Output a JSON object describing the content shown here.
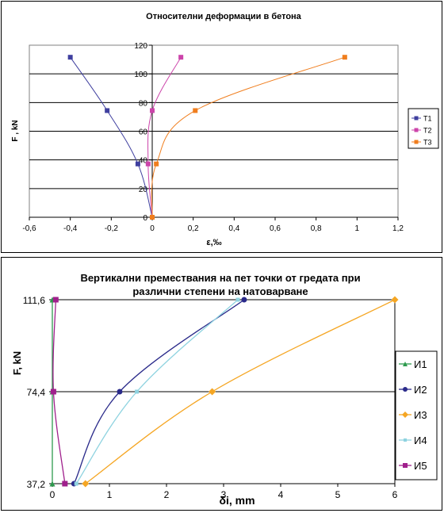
{
  "chart_data": [
    {
      "type": "scatter",
      "title": "Относителни деформации в бетона",
      "xlabel": "ε,‰",
      "ylabel": "F , kN",
      "xlim": [
        -0.6,
        1.2
      ],
      "ylim": [
        0,
        120
      ],
      "xticks": [
        "-0,6",
        "-0,4",
        "-0,2",
        "0",
        "0,2",
        "0,4",
        "0,6",
        "0,8",
        "1",
        "1,2"
      ],
      "yticks": [
        "0",
        "20",
        "40",
        "60",
        "80",
        "100",
        "120"
      ],
      "grid": "horizontal",
      "plot_background": "#ffffff",
      "legend_position": "right",
      "series": [
        {
          "name": "T1",
          "color": "#3f3f9f",
          "marker": "square",
          "x": [
            0,
            -0.07,
            -0.22,
            -0.4
          ],
          "y": [
            0,
            37.2,
            74.4,
            111.6
          ]
        },
        {
          "name": "T2",
          "color": "#cc44aa",
          "marker": "square",
          "x": [
            0,
            -0.02,
            0,
            0.14
          ],
          "y": [
            0,
            37.2,
            74.4,
            111.6
          ]
        },
        {
          "name": "T3",
          "color": "#f07e1e",
          "marker": "square",
          "x": [
            0,
            0.02,
            0.21,
            0.94
          ],
          "y": [
            0,
            37.2,
            74.4,
            111.6
          ]
        }
      ]
    },
    {
      "type": "scatter",
      "title": "Вертикални премествания на пет точки от гредата при различни степени на натоварване",
      "title_lines": [
        "Вертикални премествания на пет точки от гредата при",
        "различни степени на натоварване"
      ],
      "xlabel": "δi, mm",
      "ylabel": "F, kN",
      "xlim": [
        0,
        6
      ],
      "ylim": [
        37.2,
        111.6
      ],
      "xticks": [
        "0",
        "1",
        "2",
        "3",
        "4",
        "5",
        "6"
      ],
      "yticks": [
        "37,2",
        "74,4",
        "111,6"
      ],
      "ytick_values": [
        37.2,
        74.4,
        111.6
      ],
      "grid": "horizontal",
      "legend_position": "right",
      "series": [
        {
          "name": "И1",
          "color": "#2e9a4e",
          "marker": "triangle",
          "x": [
            0.0,
            0.0,
            0.0
          ],
          "y": [
            37.2,
            74.4,
            111.6
          ]
        },
        {
          "name": "И2",
          "color": "#2a2a8a",
          "marker": "circle",
          "x": [
            0.38,
            1.18,
            3.36
          ],
          "y": [
            37.2,
            74.4,
            111.6
          ]
        },
        {
          "name": "И3",
          "color": "#f5a623",
          "marker": "diamond",
          "x": [
            0.58,
            2.8,
            6.0
          ],
          "y": [
            37.2,
            74.4,
            111.6
          ]
        },
        {
          "name": "И4",
          "color": "#8fd3e0",
          "marker": "square-small",
          "x": [
            0.42,
            1.48,
            3.25
          ],
          "y": [
            37.2,
            74.4,
            111.6
          ]
        },
        {
          "name": "И5",
          "color": "#a0208c",
          "marker": "square",
          "x": [
            0.22,
            0.02,
            0.06
          ],
          "y": [
            37.2,
            74.4,
            111.6
          ]
        }
      ]
    }
  ]
}
